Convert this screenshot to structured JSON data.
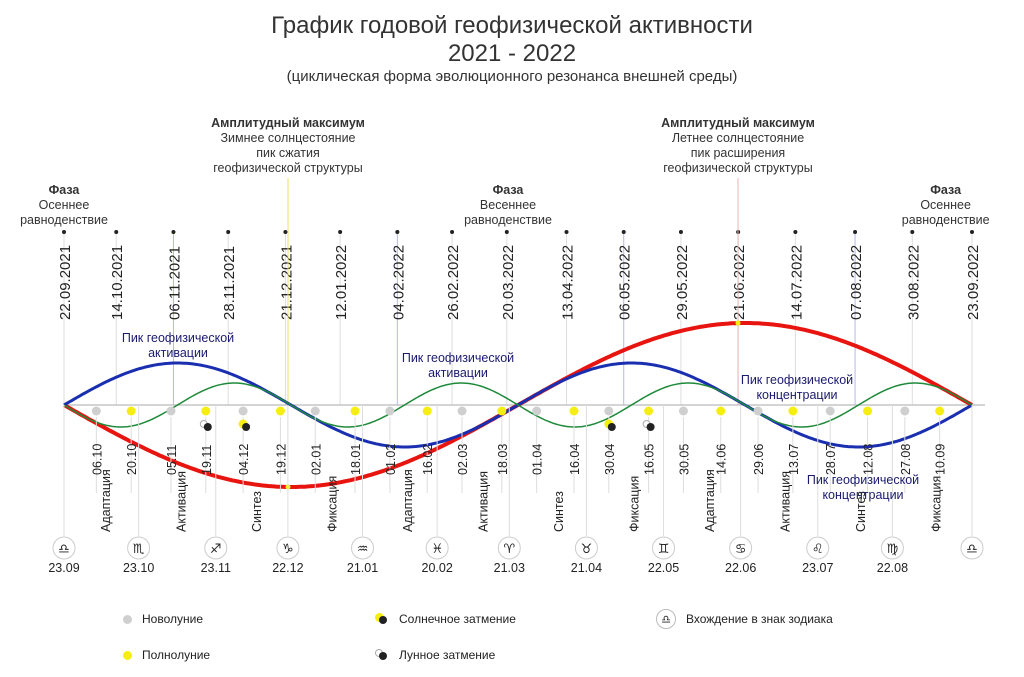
{
  "header": {
    "title_line1": "График годовой геофизической активности",
    "title_line2": "2021 - 2022",
    "subtitle": "(циклическая форма эволюционного резонанса внешней среды)"
  },
  "annotations": {
    "phase_left": {
      "bold": "Фаза",
      "text1": "Осеннее",
      "text2": "равноденствие"
    },
    "phase_mid": {
      "bold": "Фаза",
      "text1": "Весеннее",
      "text2": "равноденствие"
    },
    "phase_right": {
      "bold": "Фаза",
      "text1": "Осеннее",
      "text2": "равноденствие"
    },
    "max_winter": {
      "bold": "Амплитудный максимум",
      "text1": "Зимнее солнцестояние",
      "text2": "пик сжатия",
      "text3": "геофизической структуры"
    },
    "max_summer": {
      "bold": "Амплитудный максимум",
      "text1": "Летнее солнцестояние",
      "text2": "пик расширения",
      "text3": "геофизической структуры"
    },
    "peak_act1": {
      "text1": "Пик геофизической",
      "text2": "активации"
    },
    "peak_act2": {
      "text1": "Пик геофизической",
      "text2": "активации"
    },
    "peak_conc1": {
      "text1": "Пик геофизической",
      "text2": "концентрации"
    },
    "peak_conc2": {
      "text1": "Пик геофизической",
      "text2": "концентрации"
    }
  },
  "chart_data": {
    "type": "line",
    "colors": {
      "red": "#e8140f",
      "blue": "#1a2fb0",
      "green": "#1f8a3a",
      "new_moon": "#cfcfcf",
      "full_moon": "#f5ee10",
      "eclipse": "#222222"
    },
    "top_dates": [
      "22.09.2021",
      "14.10.2021",
      "06.11.2021",
      "28.11.2021",
      "21.12.2021",
      "12.01.2022",
      "04.02.2022",
      "26.02.2022",
      "20.03.2022",
      "13.04.2022",
      "06.05.2022",
      "29.05.2022",
      "21.06.2022",
      "14.07.2022",
      "07.08.2022",
      "30.08.2022",
      "23.09.2022"
    ],
    "series": [
      {
        "name": "annual",
        "color": "red",
        "cycles": 1,
        "amplitude": 1.0
      },
      {
        "name": "semiannual",
        "color": "blue",
        "cycles": 2,
        "amplitude": 0.5
      },
      {
        "name": "quarterly",
        "color": "green",
        "cycles": 4,
        "amplitude": 0.27
      }
    ],
    "moon_dates": [
      {
        "date": "06.10",
        "type": "new"
      },
      {
        "date": "20.10",
        "type": "full"
      },
      {
        "date": "05.11",
        "type": "new"
      },
      {
        "date": "19.11",
        "type": "full",
        "eclipse": "lunar"
      },
      {
        "date": "04.12",
        "type": "new",
        "eclipse": "solar"
      },
      {
        "date": "19.12",
        "type": "full"
      },
      {
        "date": "02.01",
        "type": "new"
      },
      {
        "date": "18.01",
        "type": "full"
      },
      {
        "date": "01.02",
        "type": "new"
      },
      {
        "date": "16.02",
        "type": "full"
      },
      {
        "date": "02.03",
        "type": "new"
      },
      {
        "date": "18.03",
        "type": "full"
      },
      {
        "date": "01.04",
        "type": "new"
      },
      {
        "date": "16.04",
        "type": "full"
      },
      {
        "date": "30.04",
        "type": "new",
        "eclipse": "solar"
      },
      {
        "date": "16.05",
        "type": "full",
        "eclipse": "lunar"
      },
      {
        "date": "30.05",
        "type": "new"
      },
      {
        "date": "14.06",
        "type": "full"
      },
      {
        "date": "29.06",
        "type": "new"
      },
      {
        "date": "13.07",
        "type": "full"
      },
      {
        "date": "28.07",
        "type": "new"
      },
      {
        "date": "12.08",
        "type": "full"
      },
      {
        "date": "27.08",
        "type": "new"
      },
      {
        "date": "10.09",
        "type": "full"
      }
    ],
    "zodiac": [
      {
        "sign": "♎",
        "date": "23.09"
      },
      {
        "sign": "♏",
        "date": "23.10"
      },
      {
        "sign": "♐",
        "date": "23.11"
      },
      {
        "sign": "♑",
        "date": "22.12"
      },
      {
        "sign": "♒",
        "date": "21.01"
      },
      {
        "sign": "♓",
        "date": "20.02"
      },
      {
        "sign": "♈",
        "date": "21.03"
      },
      {
        "sign": "♉",
        "date": "21.04"
      },
      {
        "sign": "♊",
        "date": "22.05"
      },
      {
        "sign": "♋",
        "date": "22.06"
      },
      {
        "sign": "♌",
        "date": "23.07"
      },
      {
        "sign": "♍",
        "date": "22.08"
      },
      {
        "sign": "♎",
        "date": ""
      }
    ],
    "phases": [
      "Адаптация",
      "Активация",
      "Синтез",
      "Фиксация",
      "Адаптация",
      "Активация",
      "Синтез",
      "Фиксация",
      "Адаптация",
      "Активация",
      "Синтез",
      "Фиксация"
    ]
  },
  "legend": {
    "new_moon": "Новолуние",
    "full_moon": "Полнолуние",
    "solar_eclipse": "Солнечное затмение",
    "lunar_eclipse": "Лунное затмение",
    "zodiac_entry": "Вхождение в знак зодиака",
    "zodiac_symbol": "♎"
  }
}
